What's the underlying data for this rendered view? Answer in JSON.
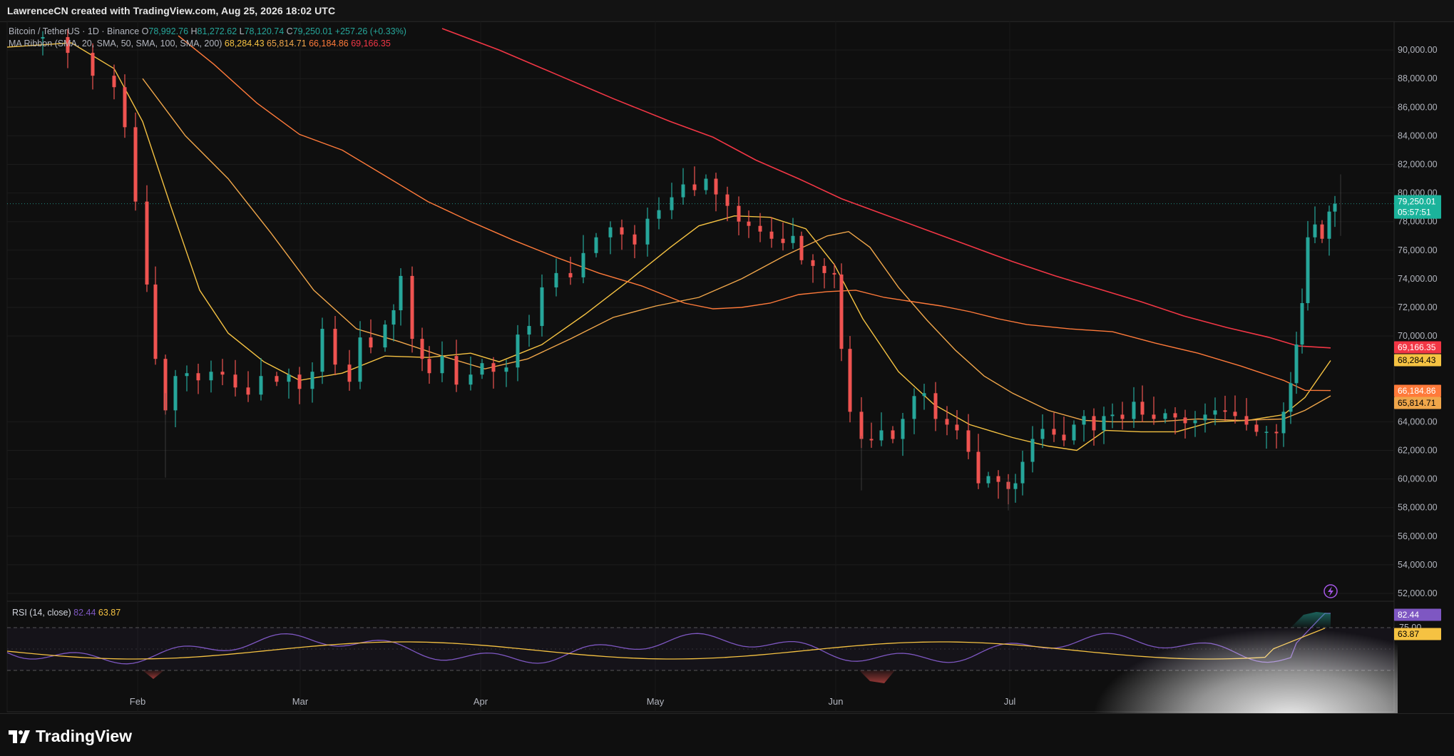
{
  "header": {
    "credit": "LawrenceCN created with TradingView.com, Aug 25, 2026 18:02 UTC"
  },
  "symbol": {
    "name": "Bitcoin / TetherUS · 1D · Binance",
    "open_label": "O",
    "open": "78,992.76",
    "high_label": "H",
    "high": "81,272.62",
    "low_label": "L",
    "low": "78,120.74",
    "close_label": "C",
    "close": "79,250.01",
    "change": "+257.26 (+0.33%)"
  },
  "ma_ribbon": {
    "label": "MA Ribbon (SMA, 20, SMA, 50, SMA, 100, SMA, 200)",
    "values": [
      "68,284.43",
      "65,814.71",
      "66,184.86",
      "69,166.35"
    ],
    "colors": [
      "#f5c242",
      "#f0a64a",
      "#ff7a3a",
      "#f23645"
    ]
  },
  "rsi": {
    "label": "RSI (14, close)",
    "value": "82.44",
    "ma_value": "63.87",
    "level_label": "75.00",
    "colors": {
      "rsi": "#7e57c2",
      "ma": "#f5c242"
    }
  },
  "price_axis": {
    "ticks": [
      "90,000.00",
      "88,000.00",
      "86,000.00",
      "84,000.00",
      "82,000.00",
      "80,000.00",
      "78,000.00",
      "76,000.00",
      "74,000.00",
      "72,000.00",
      "70,000.00",
      "64,000.00",
      "62,000.00",
      "60,000.00",
      "58,000.00",
      "56,000.00",
      "54,000.00",
      "52,000.00"
    ],
    "current_price": "79,250.01",
    "countdown": "05:57:51",
    "ma_badges": [
      {
        "value": "69,166.35",
        "color": "#f23645"
      },
      {
        "value": "68,284.43",
        "color": "#f5c242"
      },
      {
        "value": "66,184.86",
        "color": "#ff7a3a"
      },
      {
        "value": "65,814.71",
        "color": "#f0a64a"
      }
    ]
  },
  "time_axis": {
    "labels": [
      "Feb",
      "Mar",
      "Apr",
      "May",
      "Jun",
      "Jul"
    ]
  },
  "footer": {
    "brand": "TradingView"
  },
  "colors": {
    "up": "#26a69a",
    "down": "#ef5350",
    "background": "#0f0f0f"
  },
  "chart_data": {
    "type": "candlestick",
    "title": "Bitcoin / TetherUS · 1D · Binance",
    "ylim": [
      50000,
      92000
    ],
    "grid": true,
    "x_labels": [
      "Feb",
      "Mar",
      "Apr",
      "May",
      "Jun",
      "Jul"
    ],
    "approx_close_path": [
      {
        "x": "Jan",
        "y": 90500
      },
      {
        "x": "Feb",
        "y": 79000
      },
      {
        "x": "Feb",
        "y": 63500
      },
      {
        "x": "Mar",
        "y": 67500
      },
      {
        "x": "Mar",
        "y": 69500
      },
      {
        "x": "Apr",
        "y": 66500
      },
      {
        "x": "Apr",
        "y": 76500
      },
      {
        "x": "May",
        "y": 82000
      },
      {
        "x": "May",
        "y": 76000
      },
      {
        "x": "Jun",
        "y": 62500
      },
      {
        "x": "Jun",
        "y": 64500
      },
      {
        "x": "Jul",
        "y": 58500
      },
      {
        "x": "Jul",
        "y": 64500
      },
      {
        "x": "Aug",
        "y": 63000
      },
      {
        "x": "Aug",
        "y": 79250
      }
    ]
  }
}
